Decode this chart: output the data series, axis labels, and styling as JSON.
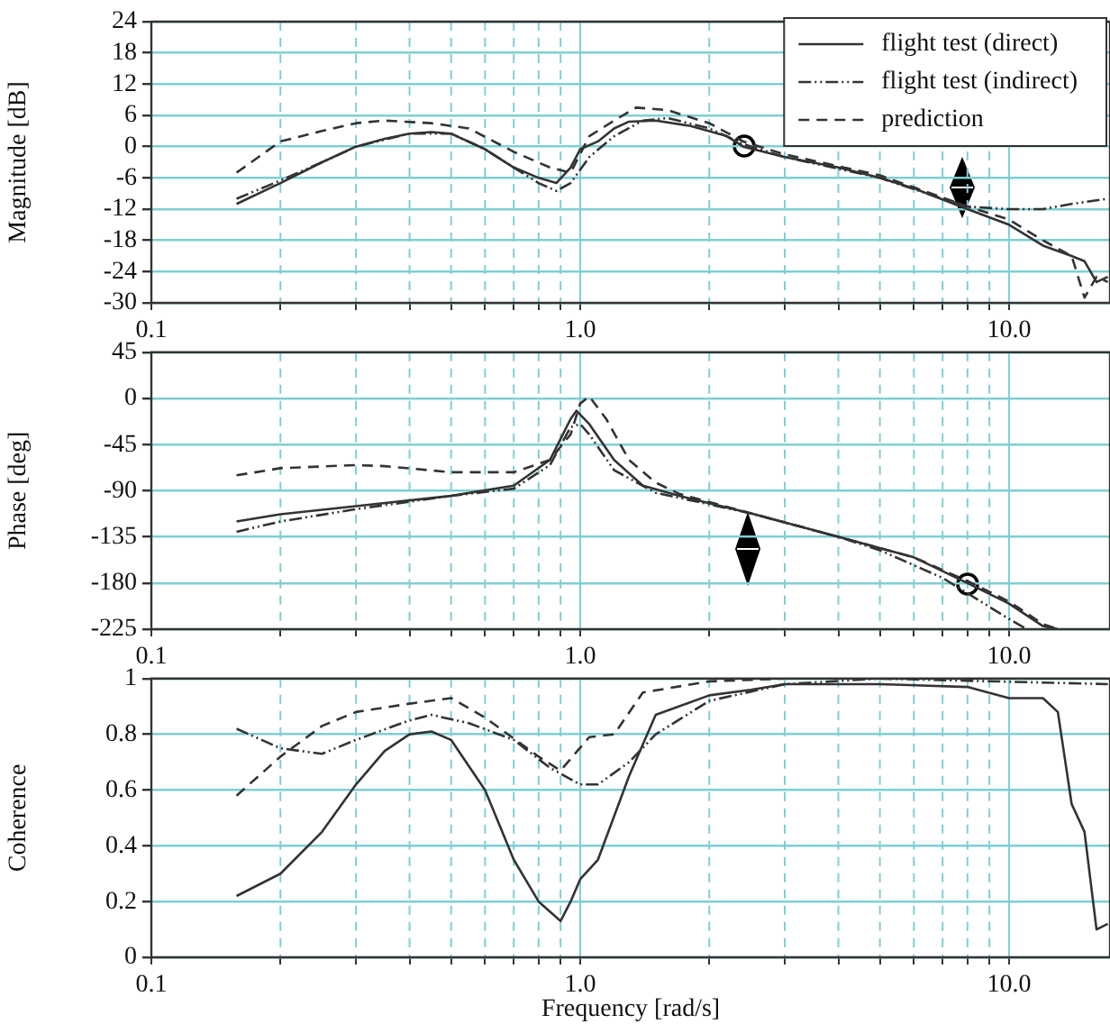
{
  "chart_data": [
    {
      "type": "line",
      "ylabel": "Magnitude [dB]",
      "log": "x",
      "xlim": [
        0.1,
        17.2
      ],
      "ylim": [
        -30,
        24
      ],
      "yticks": [
        -30,
        -24,
        -18,
        -12,
        -6,
        0,
        6,
        12,
        18,
        24
      ],
      "xticks": [
        {
          "value": 0.1,
          "label": "0.1"
        },
        {
          "value": 0.2,
          "label": null
        },
        {
          "value": 0.3,
          "label": null
        },
        {
          "value": 0.4,
          "label": null
        },
        {
          "value": 0.5,
          "label": null
        },
        {
          "value": 0.6,
          "label": null
        },
        {
          "value": 0.7,
          "label": null
        },
        {
          "value": 0.8,
          "label": null
        },
        {
          "value": 0.9,
          "label": null
        },
        {
          "value": 1,
          "label": "1.0"
        },
        {
          "value": 2,
          "label": null
        },
        {
          "value": 3,
          "label": null
        },
        {
          "value": 4,
          "label": null
        },
        {
          "value": 5,
          "label": null
        },
        {
          "value": 6,
          "label": null
        },
        {
          "value": 7,
          "label": null
        },
        {
          "value": 8,
          "label": null
        },
        {
          "value": 9,
          "label": null
        },
        {
          "value": 10,
          "label": "10.0"
        }
      ],
      "grid": true,
      "legend": "top right",
      "marker": "none",
      "series": [
        {
          "name": "flight test (direct)",
          "color": "#333333",
          "line_style": "solid",
          "x": [
            0.158,
            0.2,
            0.25,
            0.3,
            0.35,
            0.4,
            0.45,
            0.5,
            0.6,
            0.7,
            0.8,
            0.88,
            0.95,
            1.0,
            1.1,
            1.2,
            1.3,
            1.5,
            1.8,
            2.2,
            2.4,
            3,
            4,
            5,
            6,
            8,
            10,
            12,
            14,
            15,
            16,
            17
          ],
          "values": [
            -11,
            -7,
            -3,
            0,
            1.5,
            2.5,
            2.8,
            2.5,
            -0.5,
            -4,
            -6,
            -7,
            -4,
            -0.5,
            1,
            3.5,
            4.8,
            5,
            4,
            2,
            0,
            -2,
            -4,
            -6,
            -8,
            -12,
            -15,
            -19,
            -21,
            -22,
            -26,
            -25
          ]
        },
        {
          "name": "flight test (indirect)",
          "color": "#333333",
          "line_style": "dotted",
          "x": [
            0.158,
            0.2,
            0.25,
            0.3,
            0.4,
            0.5,
            0.6,
            0.7,
            0.8,
            0.88,
            0.95,
            1.05,
            1.2,
            1.4,
            1.6,
            2,
            2.4,
            3,
            5,
            7,
            8,
            10,
            12,
            14,
            17
          ],
          "values": [
            -10,
            -6.5,
            -3,
            0,
            2.5,
            2.5,
            -0.5,
            -4,
            -7,
            -8.5,
            -7,
            -2,
            2,
            5,
            5.5,
            3.5,
            0.5,
            -2,
            -6,
            -10,
            -11.5,
            -12,
            -12,
            -11,
            -10
          ]
        },
        {
          "name": "prediction",
          "color": "#333333",
          "line_style": "dashed",
          "x": [
            0.158,
            0.2,
            0.25,
            0.3,
            0.35,
            0.45,
            0.55,
            0.7,
            0.85,
            0.95,
            1.05,
            1.2,
            1.35,
            1.6,
            2,
            2.4,
            3,
            5,
            8,
            10,
            12,
            14,
            15,
            16,
            17
          ],
          "values": [
            -5,
            1,
            3,
            4.5,
            5,
            4.5,
            3.5,
            -1,
            -4,
            -5,
            2,
            5,
            7.5,
            7,
            4.5,
            1,
            -1.5,
            -5.5,
            -11.5,
            -14,
            -18,
            -21,
            -29,
            -25,
            -26
          ]
        }
      ]
    },
    {
      "type": "line",
      "ylabel": "Phase [deg]",
      "log": "x",
      "xlim": [
        0.1,
        17.2
      ],
      "ylim": [
        -225,
        45
      ],
      "yticks": [
        -225,
        -180,
        -135,
        -90,
        -45,
        0,
        45
      ],
      "xticks": [
        {
          "value": 0.1,
          "label": "0.1"
        },
        {
          "value": 0.2,
          "label": null
        },
        {
          "value": 0.3,
          "label": null
        },
        {
          "value": 0.4,
          "label": null
        },
        {
          "value": 0.5,
          "label": null
        },
        {
          "value": 0.6,
          "label": null
        },
        {
          "value": 0.7,
          "label": null
        },
        {
          "value": 0.8,
          "label": null
        },
        {
          "value": 0.9,
          "label": null
        },
        {
          "value": 1,
          "label": "1.0"
        },
        {
          "value": 2,
          "label": null
        },
        {
          "value": 3,
          "label": null
        },
        {
          "value": 4,
          "label": null
        },
        {
          "value": 5,
          "label": null
        },
        {
          "value": 6,
          "label": null
        },
        {
          "value": 7,
          "label": null
        },
        {
          "value": 8,
          "label": null
        },
        {
          "value": 9,
          "label": null
        },
        {
          "value": 10,
          "label": "10.0"
        }
      ],
      "grid": true,
      "marker": "none",
      "series": [
        {
          "color": "#333333",
          "line_style": "solid",
          "x": [
            0.158,
            0.2,
            0.3,
            0.5,
            0.7,
            0.85,
            0.95,
            0.98,
            1.05,
            1.2,
            1.4,
            1.7,
            2.5,
            4,
            6,
            8,
            10,
            12,
            13
          ],
          "values": [
            -120,
            -113,
            -105,
            -95,
            -85,
            -60,
            -20,
            -12,
            -25,
            -60,
            -85,
            -95,
            -112,
            -135,
            -155,
            -180,
            -200,
            -222,
            -225
          ]
        },
        {
          "color": "#333333",
          "line_style": "dotted",
          "x": [
            0.158,
            0.2,
            0.3,
            0.5,
            0.7,
            0.85,
            0.95,
            1.0,
            1.05,
            1.2,
            1.5,
            2.5,
            4,
            5,
            7,
            10,
            11
          ],
          "values": [
            -130,
            -120,
            -108,
            -95,
            -88,
            -65,
            -28,
            -25,
            -35,
            -70,
            -92,
            -112,
            -135,
            -148,
            -175,
            -215,
            -225
          ]
        },
        {
          "color": "#333333",
          "line_style": "dashed",
          "x": [
            0.158,
            0.2,
            0.3,
            0.35,
            0.5,
            0.7,
            0.85,
            0.95,
            1.0,
            1.05,
            1.15,
            1.3,
            1.5,
            1.7,
            2.5,
            4,
            6,
            8,
            10,
            12,
            13
          ],
          "values": [
            -75,
            -68,
            -65,
            -66,
            -72,
            -72,
            -60,
            -35,
            -5,
            2,
            -20,
            -60,
            -82,
            -93,
            -112,
            -135,
            -155,
            -178,
            -198,
            -220,
            -225
          ]
        }
      ]
    },
    {
      "type": "line",
      "ylabel": "Coherence",
      "xlabel": "Frequency [rad/s]",
      "log": "x",
      "xlim": [
        0.1,
        17.2
      ],
      "ylim": [
        0,
        1
      ],
      "yticks": [
        0,
        0.2,
        0.4,
        0.6,
        0.8,
        1
      ],
      "xticks": [
        {
          "value": 0.1,
          "label": "0.1"
        },
        {
          "value": 0.2,
          "label": null
        },
        {
          "value": 0.3,
          "label": null
        },
        {
          "value": 0.4,
          "label": null
        },
        {
          "value": 0.5,
          "label": null
        },
        {
          "value": 0.6,
          "label": null
        },
        {
          "value": 0.7,
          "label": null
        },
        {
          "value": 0.8,
          "label": null
        },
        {
          "value": 0.9,
          "label": null
        },
        {
          "value": 1,
          "label": "1.0"
        },
        {
          "value": 2,
          "label": null
        },
        {
          "value": 3,
          "label": null
        },
        {
          "value": 4,
          "label": null
        },
        {
          "value": 5,
          "label": null
        },
        {
          "value": 6,
          "label": null
        },
        {
          "value": 7,
          "label": null
        },
        {
          "value": 8,
          "label": null
        },
        {
          "value": 9,
          "label": null
        },
        {
          "value": 10,
          "label": "10.0"
        }
      ],
      "grid": true,
      "marker": "none",
      "series": [
        {
          "color": "#333333",
          "line_style": "solid",
          "x": [
            0.158,
            0.2,
            0.25,
            0.3,
            0.35,
            0.4,
            0.45,
            0.5,
            0.6,
            0.7,
            0.8,
            0.9,
            0.95,
            1.0,
            1.1,
            1.3,
            1.5,
            2,
            2.5,
            3,
            5,
            8,
            10,
            12,
            13,
            14,
            15,
            16,
            17
          ],
          "values": [
            0.22,
            0.3,
            0.45,
            0.62,
            0.74,
            0.8,
            0.81,
            0.78,
            0.6,
            0.35,
            0.2,
            0.13,
            0.2,
            0.28,
            0.35,
            0.65,
            0.87,
            0.94,
            0.96,
            0.98,
            0.98,
            0.97,
            0.93,
            0.93,
            0.88,
            0.55,
            0.45,
            0.1,
            0.12
          ]
        },
        {
          "color": "#333333",
          "line_style": "dotted",
          "x": [
            0.158,
            0.2,
            0.25,
            0.3,
            0.4,
            0.45,
            0.55,
            0.7,
            0.85,
            1.0,
            1.1,
            1.3,
            1.5,
            2,
            3,
            5,
            17
          ],
          "values": [
            0.82,
            0.75,
            0.73,
            0.78,
            0.85,
            0.87,
            0.84,
            0.78,
            0.68,
            0.62,
            0.62,
            0.7,
            0.8,
            0.92,
            0.98,
            1.0,
            0.98
          ]
        },
        {
          "color": "#333333",
          "line_style": "dashed",
          "x": [
            0.158,
            0.2,
            0.25,
            0.3,
            0.4,
            0.5,
            0.6,
            0.8,
            0.9,
            1.05,
            1.2,
            1.4,
            2,
            3,
            17
          ],
          "values": [
            0.58,
            0.72,
            0.83,
            0.88,
            0.91,
            0.93,
            0.86,
            0.72,
            0.67,
            0.79,
            0.8,
            0.95,
            0.99,
            1.0,
            1.0
          ]
        }
      ]
    }
  ]
}
